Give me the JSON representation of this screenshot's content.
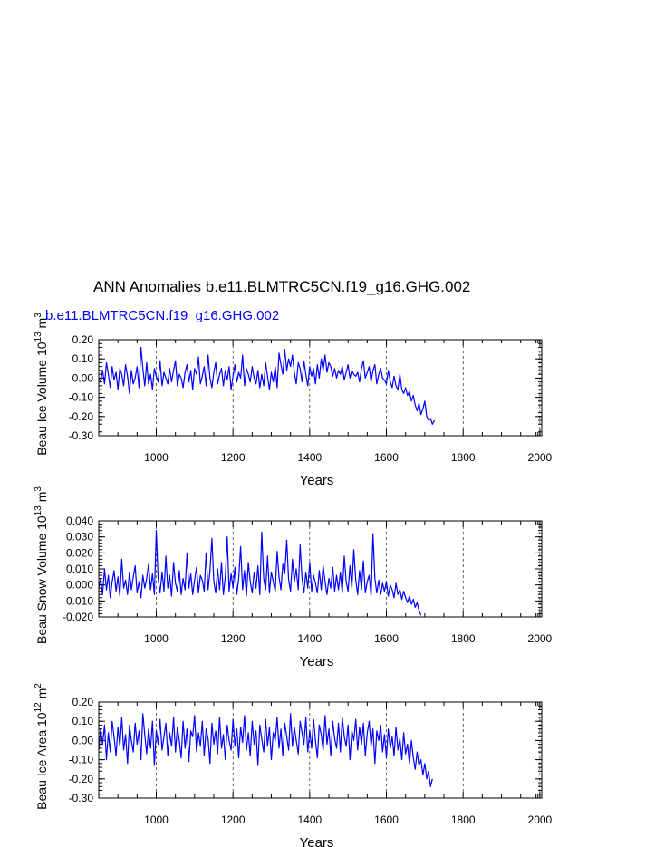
{
  "title": "ANN Anomalies b.e11.BLMTRC5CN.f19_g16.GHG.002",
  "case_label": "b.e11.BLMTRC5CN.f19_g16.GHG.002",
  "colors": {
    "series": "#0000ff",
    "axes": "#000000"
  },
  "chart_data": [
    {
      "type": "line",
      "ylabel": {
        "name": "Beau Ice Volume",
        "base": "10",
        "exp": "13",
        "unit": "m",
        "unit_exp": "3"
      },
      "xlabel": "Years",
      "xlim": [
        850,
        2005
      ],
      "ylim": [
        -0.3,
        0.2
      ],
      "xticks": [
        1000,
        1200,
        1400,
        1600,
        1800,
        2000
      ],
      "xtick_labels": [
        "1000",
        "1200",
        "1400",
        "1600",
        "1800",
        "2000"
      ],
      "yticks": [
        0.2,
        0.1,
        0.0,
        -0.1,
        -0.2,
        -0.3
      ],
      "ytick_labels": [
        "0.20",
        "0.10",
        "0.00",
        "-0.10",
        "-0.20",
        "-0.30"
      ],
      "grid": "vertical-dashed",
      "series": [
        {
          "x_start": 850,
          "x_step": 5,
          "values": [
            0.0,
            -0.02,
            0.04,
            -0.03,
            0.08,
            0.02,
            -0.05,
            0.06,
            -0.01,
            0.03,
            -0.06,
            0.05,
            0.02,
            -0.04,
            0.07,
            0.01,
            -0.08,
            0.04,
            -0.03,
            0.0,
            0.06,
            -0.05,
            0.16,
            0.05,
            -0.04,
            0.08,
            -0.03,
            0.02,
            -0.06,
            0.05,
            0.01,
            -0.02,
            0.09,
            -0.04,
            0.03,
            0.0,
            -0.03,
            0.05,
            -0.02,
            0.04,
            0.09,
            -0.04,
            0.02,
            0.0,
            -0.05,
            0.03,
            0.07,
            -0.02,
            0.04,
            -0.06,
            0.05,
            0.02,
            0.11,
            -0.03,
            0.01,
            0.06,
            -0.04,
            0.12,
            0.0,
            -0.05,
            0.03,
            0.08,
            -0.03,
            0.02,
            0.05,
            -0.04,
            0.04,
            -0.01,
            0.06,
            -0.06,
            0.01,
            0.07,
            -0.02,
            0.03,
            0.0,
            0.12,
            -0.04,
            0.05,
            0.02,
            -0.02,
            0.06,
            0.0,
            -0.03,
            0.04,
            -0.05,
            0.02,
            -0.04,
            0.08,
            0.01,
            -0.06,
            0.03,
            -0.02,
            0.06,
            -0.05,
            0.13,
            0.07,
            0.02,
            0.15,
            0.04,
            0.1,
            0.06,
            0.12,
            0.03,
            -0.03,
            0.08,
            0.05,
            -0.02,
            0.09,
            0.02,
            -0.04,
            0.06,
            0.01,
            0.05,
            -0.03,
            0.07,
            0.0,
            0.1,
            0.04,
            0.12,
            0.03,
            0.08,
            0.06,
            0.01,
            0.05,
            0.0,
            0.04,
            0.02,
            0.06,
            -0.01,
            0.03,
            0.07,
            0.0,
            0.04,
            0.02,
            0.01,
            0.03,
            -0.02,
            0.05,
            0.09,
            0.0,
            0.03,
            0.06,
            -0.02,
            0.04,
            0.07,
            -0.03,
            0.02,
            0.05,
            0.0,
            -0.01,
            -0.03,
            0.04,
            -0.02,
            -0.05,
            0.01,
            -0.04,
            -0.06,
            0.02,
            -0.06,
            -0.08,
            -0.05,
            -0.09,
            -0.07,
            -0.12,
            -0.09,
            -0.14,
            -0.17,
            -0.13,
            -0.19,
            -0.16,
            -0.12,
            -0.2,
            -0.22,
            -0.21,
            -0.24,
            -0.22
          ]
        }
      ]
    },
    {
      "type": "line",
      "ylabel": {
        "name": "Beau Snow Volume",
        "base": "10",
        "exp": "13",
        "unit": "m",
        "unit_exp": "3"
      },
      "xlabel": "Years",
      "xlim": [
        850,
        2005
      ],
      "ylim": [
        -0.02,
        0.04
      ],
      "xticks": [
        1000,
        1200,
        1400,
        1600,
        1800,
        2000
      ],
      "xtick_labels": [
        "1000",
        "1200",
        "1400",
        "1600",
        "1800",
        "2000"
      ],
      "yticks": [
        0.04,
        0.03,
        0.02,
        0.01,
        0.0,
        -0.01,
        -0.02
      ],
      "ytick_labels": [
        "0.040",
        "0.030",
        "0.020",
        "0.010",
        "0.000",
        "-0.010",
        "-0.020"
      ],
      "grid": "vertical-dashed",
      "series": [
        {
          "x_start": 850,
          "x_step": 5,
          "values": [
            -0.002,
            0.004,
            -0.006,
            0.01,
            -0.003,
            0.006,
            -0.008,
            0.002,
            0.009,
            -0.004,
            0.005,
            -0.007,
            0.016,
            -0.002,
            0.003,
            -0.006,
            0.008,
            -0.003,
            0.005,
            0.012,
            -0.005,
            0.002,
            -0.008,
            0.006,
            -0.002,
            0.004,
            0.013,
            -0.003,
            0.007,
            -0.006,
            0.034,
            0.004,
            -0.005,
            0.008,
            -0.004,
            0.018,
            -0.002,
            0.006,
            -0.007,
            0.014,
            0.001,
            -0.004,
            0.009,
            -0.006,
            0.004,
            -0.003,
            0.02,
            -0.002,
            0.007,
            -0.006,
            0.003,
            0.011,
            -0.005,
            0.006,
            0.003,
            -0.004,
            0.02,
            -0.003,
            0.009,
            0.029,
            0.002,
            -0.005,
            0.01,
            -0.003,
            0.014,
            -0.006,
            0.005,
            0.03,
            -0.004,
            0.007,
            -0.002,
            0.011,
            -0.006,
            0.004,
            0.024,
            -0.003,
            0.009,
            -0.007,
            0.014,
            0.002,
            -0.005,
            0.008,
            -0.002,
            0.012,
            -0.006,
            0.033,
            0.004,
            -0.003,
            0.018,
            -0.005,
            0.008,
            0.002,
            -0.004,
            0.021,
            0.005,
            -0.003,
            0.013,
            0.007,
            0.028,
            0.003,
            -0.004,
            0.016,
            0.002,
            0.01,
            -0.003,
            0.025,
            0.004,
            -0.005,
            0.008,
            -0.002,
            0.014,
            -0.004,
            0.006,
            0.001,
            -0.005,
            0.009,
            -0.003,
            0.012,
            0.002,
            -0.006,
            0.004,
            -0.002,
            0.011,
            -0.004,
            0.006,
            -0.003,
            0.008,
            -0.005,
            0.018,
            0.002,
            -0.004,
            0.012,
            -0.002,
            0.022,
            0.003,
            -0.006,
            0.009,
            -0.003,
            0.015,
            -0.005,
            0.002,
            0.006,
            -0.007,
            0.032,
            0.004,
            -0.005,
            0.003,
            -0.006,
            0.001,
            -0.004,
            0.002,
            -0.007,
            0.0,
            -0.003,
            -0.008,
            0.001,
            -0.006,
            -0.003,
            -0.009,
            -0.004,
            -0.008,
            -0.011,
            -0.007,
            -0.012,
            -0.009,
            -0.014,
            -0.011,
            -0.016,
            -0.019
          ]
        }
      ]
    },
    {
      "type": "line",
      "ylabel": {
        "name": "Beau Ice Area",
        "base": "10",
        "exp": "12",
        "unit": "m",
        "unit_exp": "2"
      },
      "xlabel": "Years",
      "xlim": [
        850,
        2005
      ],
      "ylim": [
        -0.3,
        0.2
      ],
      "xticks": [
        1000,
        1200,
        1400,
        1600,
        1800,
        2000
      ],
      "xtick_labels": [
        "1000",
        "1200",
        "1400",
        "1600",
        "1800",
        "2000"
      ],
      "yticks": [
        0.2,
        0.1,
        0.0,
        -0.1,
        -0.2,
        -0.3
      ],
      "ytick_labels": [
        "0.20",
        "0.10",
        "0.00",
        "-0.10",
        "-0.20",
        "-0.30"
      ],
      "grid": "vertical-dashed",
      "series": [
        {
          "x_start": 850,
          "x_step": 5,
          "values": [
            -0.05,
            0.06,
            -0.02,
            0.08,
            -0.1,
            0.04,
            -0.06,
            0.1,
            0.02,
            -0.08,
            0.07,
            -0.03,
            0.12,
            -0.05,
            0.03,
            -0.12,
            0.08,
            0.0,
            -0.06,
            0.09,
            -0.02,
            0.05,
            -0.1,
            0.14,
            0.03,
            -0.07,
            0.06,
            -0.04,
            0.1,
            -0.13,
            0.05,
            -0.02,
            0.11,
            -0.05,
            0.02,
            0.09,
            -0.08,
            0.04,
            -0.03,
            0.12,
            -0.06,
            0.07,
            0.0,
            -0.09,
            0.1,
            -0.04,
            0.06,
            -0.11,
            0.05,
            0.02,
            0.13,
            -0.06,
            0.04,
            -0.03,
            0.1,
            -0.08,
            0.06,
            0.01,
            -0.12,
            0.09,
            -0.02,
            0.05,
            -0.07,
            0.12,
            -0.04,
            0.03,
            -0.1,
            0.08,
            0.0,
            -0.05,
            0.11,
            -0.03,
            0.06,
            -0.09,
            0.07,
            -0.01,
            0.13,
            -0.05,
            0.04,
            -0.08,
            0.1,
            -0.02,
            0.05,
            -0.13,
            0.08,
            0.01,
            -0.06,
            0.11,
            -0.03,
            0.07,
            -0.1,
            0.04,
            0.0,
            0.12,
            -0.04,
            0.06,
            -0.08,
            0.09,
            0.02,
            -0.05,
            0.14,
            -0.03,
            0.07,
            0.0,
            -0.07,
            0.1,
            0.04,
            -0.02,
            0.12,
            -0.06,
            0.05,
            -0.04,
            0.11,
            0.0,
            -0.09,
            0.08,
            0.03,
            -0.05,
            0.13,
            -0.02,
            0.06,
            -0.08,
            0.1,
            0.01,
            -0.04,
            0.09,
            -0.06,
            0.12,
            0.02,
            -0.03,
            0.08,
            -0.1,
            0.05,
            0.0,
            0.11,
            -0.05,
            0.07,
            -0.02,
            0.09,
            -0.08,
            0.04,
            0.1,
            -0.03,
            0.06,
            -0.12,
            0.05,
            0.0,
            0.08,
            -0.06,
            0.03,
            -0.09,
            0.06,
            -0.04,
            0.02,
            -0.08,
            0.07,
            -0.05,
            0.01,
            -0.1,
            0.04,
            -0.07,
            -0.02,
            -0.12,
            0.0,
            -0.09,
            -0.15,
            -0.06,
            -0.13,
            -0.1,
            -0.18,
            -0.12,
            -0.2,
            -0.16,
            -0.24,
            -0.2
          ]
        }
      ]
    }
  ]
}
